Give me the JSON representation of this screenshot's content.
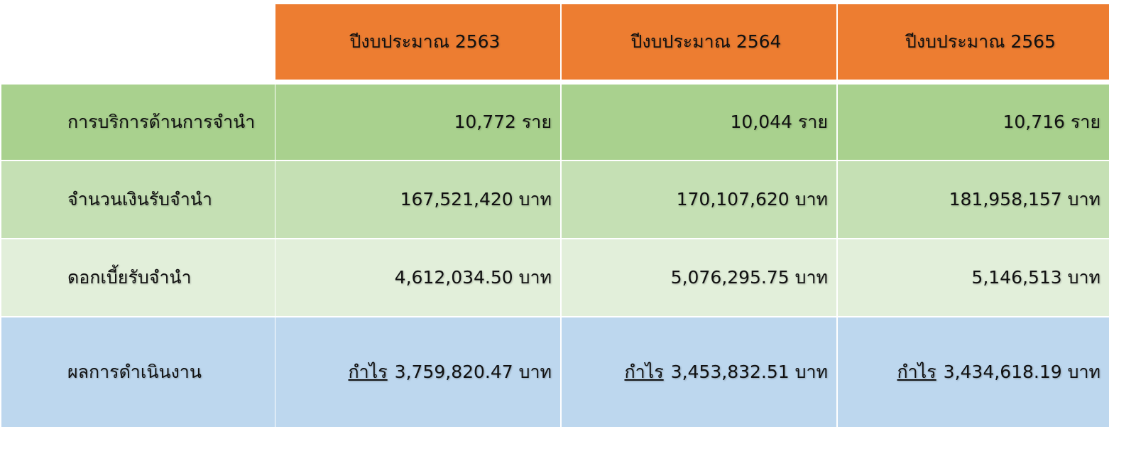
{
  "table": {
    "columns": [
      "ปีงบประมาณ 2563",
      "ปีงบประมาณ 2564",
      "ปีงบประมาณ 2565"
    ],
    "rows": [
      {
        "label": "การบริการด้านการจำนำ",
        "cells": [
          "10,772 ราย",
          "10,044 ราย",
          "10,716 ราย"
        ]
      },
      {
        "label": "จำนวนเงินรับจำนำ",
        "cells": [
          "167,521,420 บาท",
          "170,107,620 บาท",
          "181,958,157 บาท"
        ]
      },
      {
        "label": "ดอกเบี้ยรับจำนำ",
        "cells": [
          "4,612,034.50 บาท",
          "5,076,295.75 บาท",
          "5,146,513 บาท"
        ]
      },
      {
        "label": "ผลการดำเนินงาน",
        "cells": [
          {
            "prefix": "กำไร",
            "text": "3,759,820.47 บาท"
          },
          {
            "prefix": "กำไร",
            "text": "3,453,832.51 บาท"
          },
          {
            "prefix": "กำไร",
            "text": "3,434,618.19 บาท"
          }
        ]
      }
    ]
  }
}
